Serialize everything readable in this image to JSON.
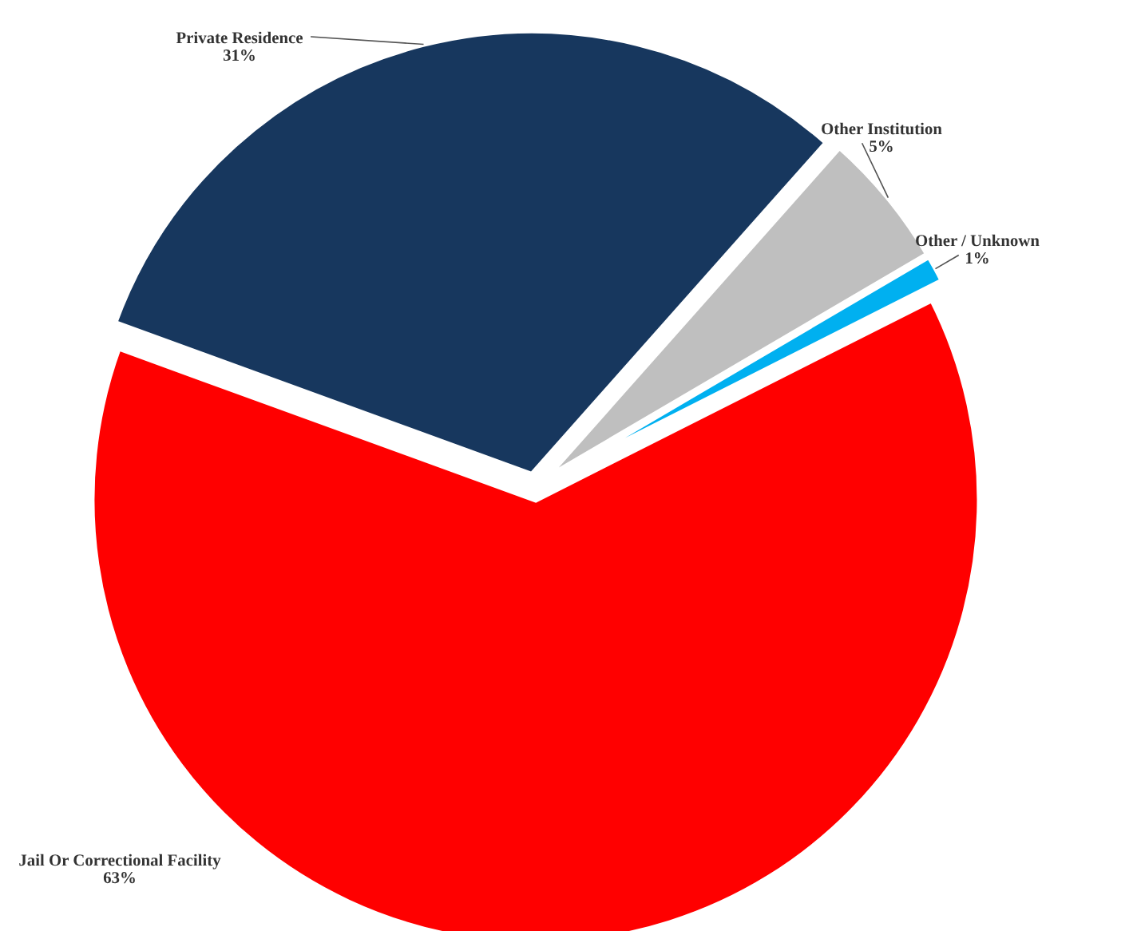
{
  "chart_data": {
    "type": "pie",
    "categories": [
      "Jail Or Correctional Facility",
      "Other / Unknown",
      "Other Institution",
      "Private Residence"
    ],
    "values": [
      63,
      1,
      5,
      31
    ],
    "colors": [
      "#ff0000",
      "#00b0f0",
      "#bfbfbf",
      "#17375e"
    ],
    "value_labels": [
      "63%",
      "1%",
      "5%",
      "31%"
    ],
    "legend": false
  }
}
